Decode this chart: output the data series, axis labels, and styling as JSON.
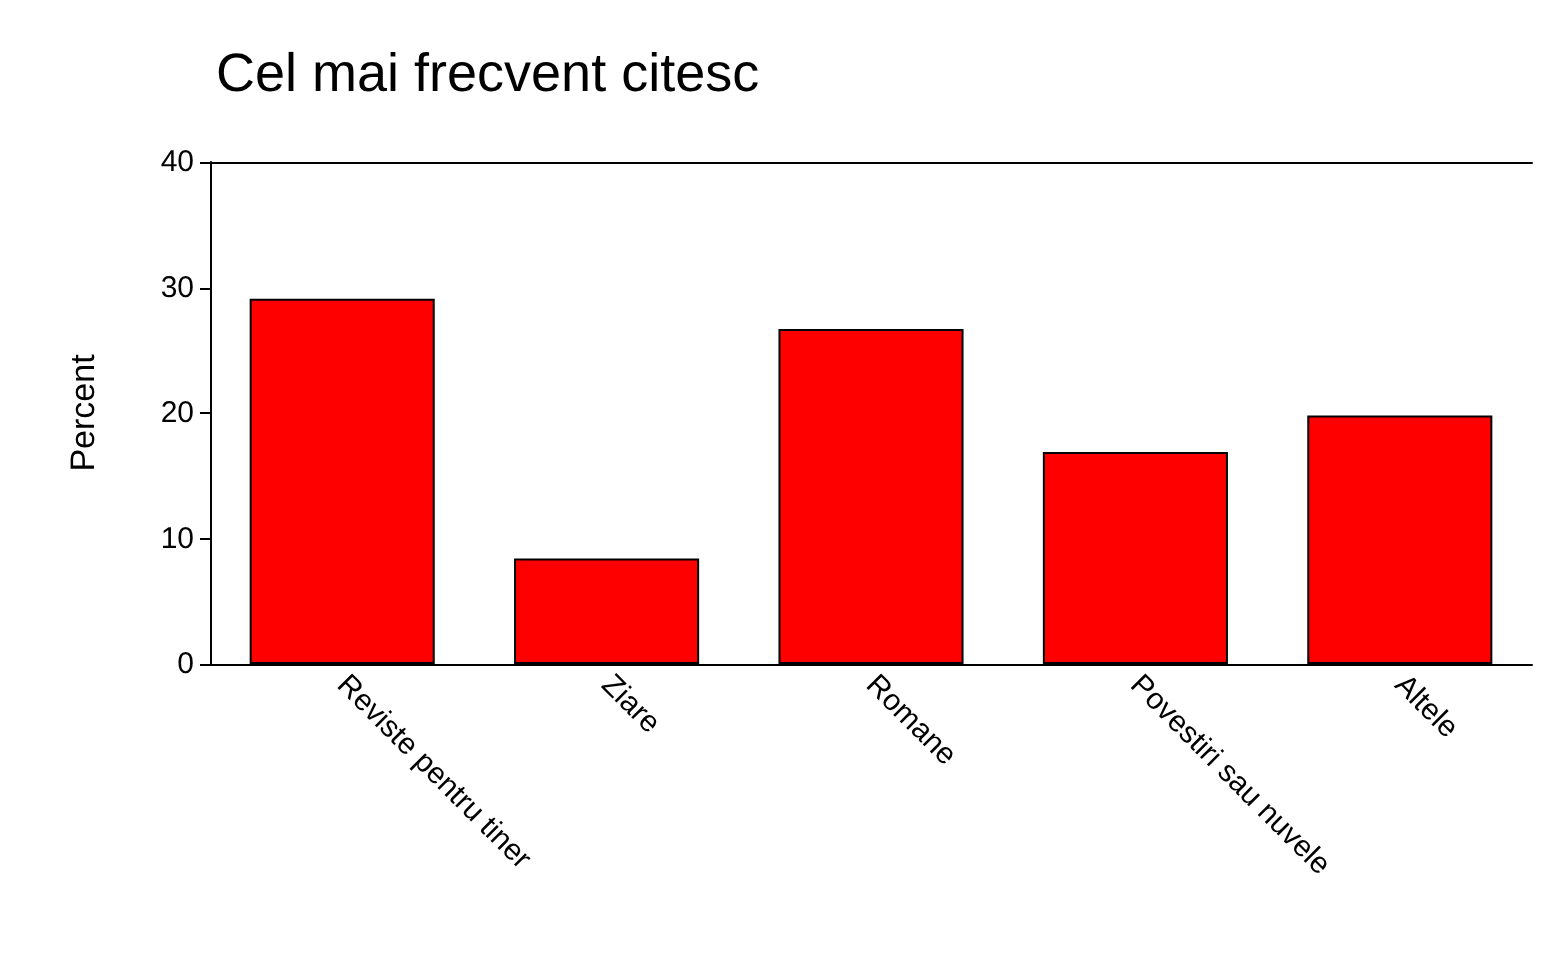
{
  "chart_data": {
    "type": "bar",
    "title": "Cel mai frecvent citesc",
    "ylabel": "Percent",
    "categories": [
      "Reviste pentru tiner",
      "Ziare",
      "Romane",
      "Povestiri sau nuvele",
      "Altele"
    ],
    "values": [
      29.1,
      8.4,
      26.7,
      16.9,
      19.8
    ],
    "color": "#ff0000",
    "ylim": [
      0,
      40
    ],
    "yticks": [
      0,
      10,
      20,
      30,
      40
    ],
    "grid": false
  }
}
